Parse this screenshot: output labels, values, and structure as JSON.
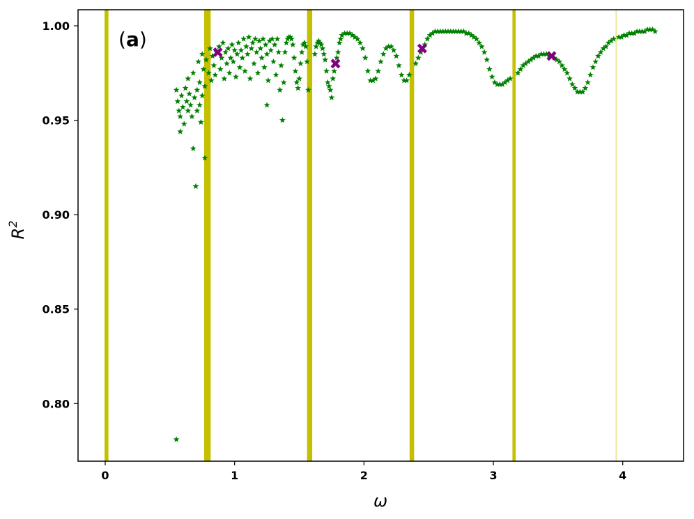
{
  "chart_data": {
    "type": "scatter",
    "panel_label": {
      "open": "(",
      "letter": "a",
      "close": ")"
    },
    "xlabel": "ω",
    "ylabel_base": "R",
    "ylabel_sup": "2",
    "xlim": [
      -0.21,
      4.47
    ],
    "ylim": [
      0.7695,
      1.0085
    ],
    "xticks": [
      0,
      1,
      2,
      3,
      4
    ],
    "yticks": [
      0.8,
      0.85,
      0.9,
      0.95,
      1.0
    ],
    "ytick_labels": [
      "0.80",
      "0.85",
      "0.90",
      "0.95",
      "1.00"
    ],
    "colors": {
      "points": "#008000",
      "markers": "#800080",
      "bands": "#c4c000",
      "band_light": "#f0e9a0"
    },
    "vertical_bands": [
      {
        "x": 0.01,
        "width": 0.03,
        "light": false
      },
      {
        "x": 0.79,
        "width": 0.05,
        "light": false
      },
      {
        "x": 1.58,
        "width": 0.04,
        "light": false
      },
      {
        "x": 2.37,
        "width": 0.035,
        "light": false
      },
      {
        "x": 3.16,
        "width": 0.025,
        "light": false
      },
      {
        "x": 3.95,
        "width": 0.012,
        "light": true
      }
    ],
    "x_markers": [
      {
        "x": 0.87,
        "y": 0.986
      },
      {
        "x": 1.78,
        "y": 0.98
      },
      {
        "x": 2.45,
        "y": 0.988
      },
      {
        "x": 3.45,
        "y": 0.984
      }
    ],
    "scatter_points": [
      [
        0.55,
        0.781
      ],
      [
        0.55,
        0.966
      ],
      [
        0.56,
        0.96
      ],
      [
        0.57,
        0.955
      ],
      [
        0.58,
        0.952
      ],
      [
        0.58,
        0.944
      ],
      [
        0.59,
        0.963
      ],
      [
        0.6,
        0.957
      ],
      [
        0.61,
        0.948
      ],
      [
        0.62,
        0.967
      ],
      [
        0.63,
        0.96
      ],
      [
        0.64,
        0.972
      ],
      [
        0.64,
        0.955
      ],
      [
        0.65,
        0.964
      ],
      [
        0.66,
        0.958
      ],
      [
        0.67,
        0.952
      ],
      [
        0.68,
        0.975
      ],
      [
        0.68,
        0.935
      ],
      [
        0.69,
        0.962
      ],
      [
        0.7,
        0.915
      ],
      [
        0.71,
        0.966
      ],
      [
        0.71,
        0.955
      ],
      [
        0.72,
        0.981
      ],
      [
        0.73,
        0.97
      ],
      [
        0.73,
        0.958
      ],
      [
        0.74,
        0.949
      ],
      [
        0.75,
        0.985
      ],
      [
        0.75,
        0.963
      ],
      [
        0.76,
        0.977
      ],
      [
        0.77,
        0.93
      ],
      [
        0.77,
        0.968
      ],
      [
        0.78,
        0.982
      ],
      [
        0.8,
        0.975
      ],
      [
        0.81,
        0.988
      ],
      [
        0.82,
        0.971
      ],
      [
        0.83,
        0.984
      ],
      [
        0.84,
        0.979
      ],
      [
        0.85,
        0.974
      ],
      [
        0.86,
        0.986
      ],
      [
        0.88,
        0.989
      ],
      [
        0.89,
        0.977
      ],
      [
        0.9,
        0.983
      ],
      [
        0.91,
        0.991
      ],
      [
        0.92,
        0.972
      ],
      [
        0.93,
        0.986
      ],
      [
        0.94,
        0.98
      ],
      [
        0.95,
        0.988
      ],
      [
        0.96,
        0.975
      ],
      [
        0.97,
        0.983
      ],
      [
        0.98,
        0.99
      ],
      [
        0.99,
        0.981
      ],
      [
        1.0,
        0.987
      ],
      [
        1.01,
        0.973
      ],
      [
        1.02,
        0.985
      ],
      [
        1.03,
        0.991
      ],
      [
        1.04,
        0.978
      ],
      [
        1.05,
        0.987
      ],
      [
        1.06,
        0.983
      ],
      [
        1.07,
        0.993
      ],
      [
        1.08,
        0.976
      ],
      [
        1.09,
        0.989
      ],
      [
        1.1,
        0.985
      ],
      [
        1.11,
        0.994
      ],
      [
        1.12,
        0.972
      ],
      [
        1.13,
        0.988
      ],
      [
        1.14,
        0.991
      ],
      [
        1.15,
        0.98
      ],
      [
        1.16,
        0.993
      ],
      [
        1.17,
        0.986
      ],
      [
        1.18,
        0.975
      ],
      [
        1.19,
        0.992
      ],
      [
        1.2,
        0.988
      ],
      [
        1.21,
        0.983
      ],
      [
        1.22,
        0.993
      ],
      [
        1.23,
        0.978
      ],
      [
        1.24,
        0.99
      ],
      [
        1.25,
        0.958
      ],
      [
        1.25,
        0.985
      ],
      [
        1.26,
        0.971
      ],
      [
        1.27,
        0.992
      ],
      [
        1.28,
        0.987
      ],
      [
        1.29,
        0.993
      ],
      [
        1.3,
        0.981
      ],
      [
        1.31,
        0.99
      ],
      [
        1.32,
        0.974
      ],
      [
        1.33,
        0.993
      ],
      [
        1.34,
        0.986
      ],
      [
        1.35,
        0.966
      ],
      [
        1.36,
        0.979
      ],
      [
        1.37,
        0.95
      ],
      [
        1.38,
        0.97
      ],
      [
        1.39,
        0.986
      ],
      [
        1.4,
        0.991
      ],
      [
        1.41,
        0.993
      ],
      [
        1.42,
        0.994
      ],
      [
        1.43,
        0.994
      ],
      [
        1.44,
        0.993
      ],
      [
        1.45,
        0.99
      ],
      [
        1.46,
        0.983
      ],
      [
        1.47,
        0.976
      ],
      [
        1.48,
        0.97
      ],
      [
        1.49,
        0.967
      ],
      [
        1.5,
        0.972
      ],
      [
        1.51,
        0.98
      ],
      [
        1.52,
        0.986
      ],
      [
        1.53,
        0.99
      ],
      [
        1.54,
        0.991
      ],
      [
        1.55,
        0.989
      ],
      [
        1.56,
        0.981
      ],
      [
        1.57,
        0.966
      ],
      [
        1.62,
        0.985
      ],
      [
        1.63,
        0.989
      ],
      [
        1.64,
        0.991
      ],
      [
        1.65,
        0.992
      ],
      [
        1.66,
        0.991
      ],
      [
        1.67,
        0.99
      ],
      [
        1.68,
        0.988
      ],
      [
        1.69,
        0.985
      ],
      [
        1.7,
        0.982
      ],
      [
        1.71,
        0.976
      ],
      [
        1.72,
        0.97
      ],
      [
        1.73,
        0.968
      ],
      [
        1.74,
        0.966
      ],
      [
        1.75,
        0.962
      ],
      [
        1.76,
        0.972
      ],
      [
        1.77,
        0.976
      ],
      [
        1.79,
        0.983
      ],
      [
        1.8,
        0.986
      ],
      [
        1.81,
        0.991
      ],
      [
        1.82,
        0.993
      ],
      [
        1.83,
        0.995
      ],
      [
        1.85,
        0.996
      ],
      [
        1.87,
        0.996
      ],
      [
        1.89,
        0.996
      ],
      [
        1.91,
        0.995
      ],
      [
        1.93,
        0.994
      ],
      [
        1.95,
        0.993
      ],
      [
        1.97,
        0.991
      ],
      [
        1.99,
        0.988
      ],
      [
        2.01,
        0.983
      ],
      [
        2.03,
        0.976
      ],
      [
        2.05,
        0.971
      ],
      [
        2.07,
        0.971
      ],
      [
        2.09,
        0.972
      ],
      [
        2.11,
        0.976
      ],
      [
        2.13,
        0.981
      ],
      [
        2.15,
        0.985
      ],
      [
        2.17,
        0.988
      ],
      [
        2.19,
        0.989
      ],
      [
        2.21,
        0.989
      ],
      [
        2.23,
        0.987
      ],
      [
        2.25,
        0.984
      ],
      [
        2.27,
        0.979
      ],
      [
        2.29,
        0.974
      ],
      [
        2.31,
        0.971
      ],
      [
        2.33,
        0.971
      ],
      [
        2.35,
        0.974
      ],
      [
        2.4,
        0.98
      ],
      [
        2.42,
        0.983
      ],
      [
        2.44,
        0.986
      ],
      [
        2.47,
        0.99
      ],
      [
        2.49,
        0.993
      ],
      [
        2.51,
        0.995
      ],
      [
        2.53,
        0.996
      ],
      [
        2.55,
        0.997
      ],
      [
        2.57,
        0.997
      ],
      [
        2.59,
        0.997
      ],
      [
        2.61,
        0.997
      ],
      [
        2.63,
        0.997
      ],
      [
        2.65,
        0.997
      ],
      [
        2.67,
        0.997
      ],
      [
        2.69,
        0.997
      ],
      [
        2.71,
        0.997
      ],
      [
        2.73,
        0.997
      ],
      [
        2.75,
        0.997
      ],
      [
        2.77,
        0.997
      ],
      [
        2.79,
        0.996
      ],
      [
        2.81,
        0.996
      ],
      [
        2.83,
        0.995
      ],
      [
        2.85,
        0.994
      ],
      [
        2.87,
        0.993
      ],
      [
        2.89,
        0.991
      ],
      [
        2.91,
        0.989
      ],
      [
        2.93,
        0.986
      ],
      [
        2.95,
        0.982
      ],
      [
        2.97,
        0.977
      ],
      [
        2.99,
        0.973
      ],
      [
        3.01,
        0.97
      ],
      [
        3.03,
        0.969
      ],
      [
        3.05,
        0.969
      ],
      [
        3.07,
        0.969
      ],
      [
        3.09,
        0.97
      ],
      [
        3.11,
        0.971
      ],
      [
        3.13,
        0.972
      ],
      [
        3.19,
        0.975
      ],
      [
        3.21,
        0.977
      ],
      [
        3.23,
        0.979
      ],
      [
        3.25,
        0.98
      ],
      [
        3.27,
        0.981
      ],
      [
        3.29,
        0.982
      ],
      [
        3.31,
        0.983
      ],
      [
        3.33,
        0.984
      ],
      [
        3.35,
        0.984
      ],
      [
        3.37,
        0.985
      ],
      [
        3.39,
        0.985
      ],
      [
        3.41,
        0.985
      ],
      [
        3.43,
        0.984
      ],
      [
        3.47,
        0.983
      ],
      [
        3.49,
        0.982
      ],
      [
        3.51,
        0.981
      ],
      [
        3.53,
        0.979
      ],
      [
        3.55,
        0.977
      ],
      [
        3.57,
        0.975
      ],
      [
        3.59,
        0.972
      ],
      [
        3.61,
        0.969
      ],
      [
        3.63,
        0.967
      ],
      [
        3.65,
        0.965
      ],
      [
        3.67,
        0.965
      ],
      [
        3.69,
        0.965
      ],
      [
        3.71,
        0.967
      ],
      [
        3.73,
        0.97
      ],
      [
        3.75,
        0.974
      ],
      [
        3.77,
        0.978
      ],
      [
        3.79,
        0.981
      ],
      [
        3.81,
        0.984
      ],
      [
        3.83,
        0.986
      ],
      [
        3.85,
        0.988
      ],
      [
        3.87,
        0.989
      ],
      [
        3.89,
        0.991
      ],
      [
        3.91,
        0.992
      ],
      [
        3.93,
        0.993
      ],
      [
        3.97,
        0.994
      ],
      [
        3.99,
        0.994
      ],
      [
        4.01,
        0.995
      ],
      [
        4.03,
        0.995
      ],
      [
        4.05,
        0.996
      ],
      [
        4.07,
        0.996
      ],
      [
        4.09,
        0.996
      ],
      [
        4.11,
        0.997
      ],
      [
        4.13,
        0.997
      ],
      [
        4.15,
        0.997
      ],
      [
        4.17,
        0.997
      ],
      [
        4.19,
        0.998
      ],
      [
        4.21,
        0.998
      ],
      [
        4.23,
        0.998
      ],
      [
        4.25,
        0.997
      ]
    ]
  }
}
